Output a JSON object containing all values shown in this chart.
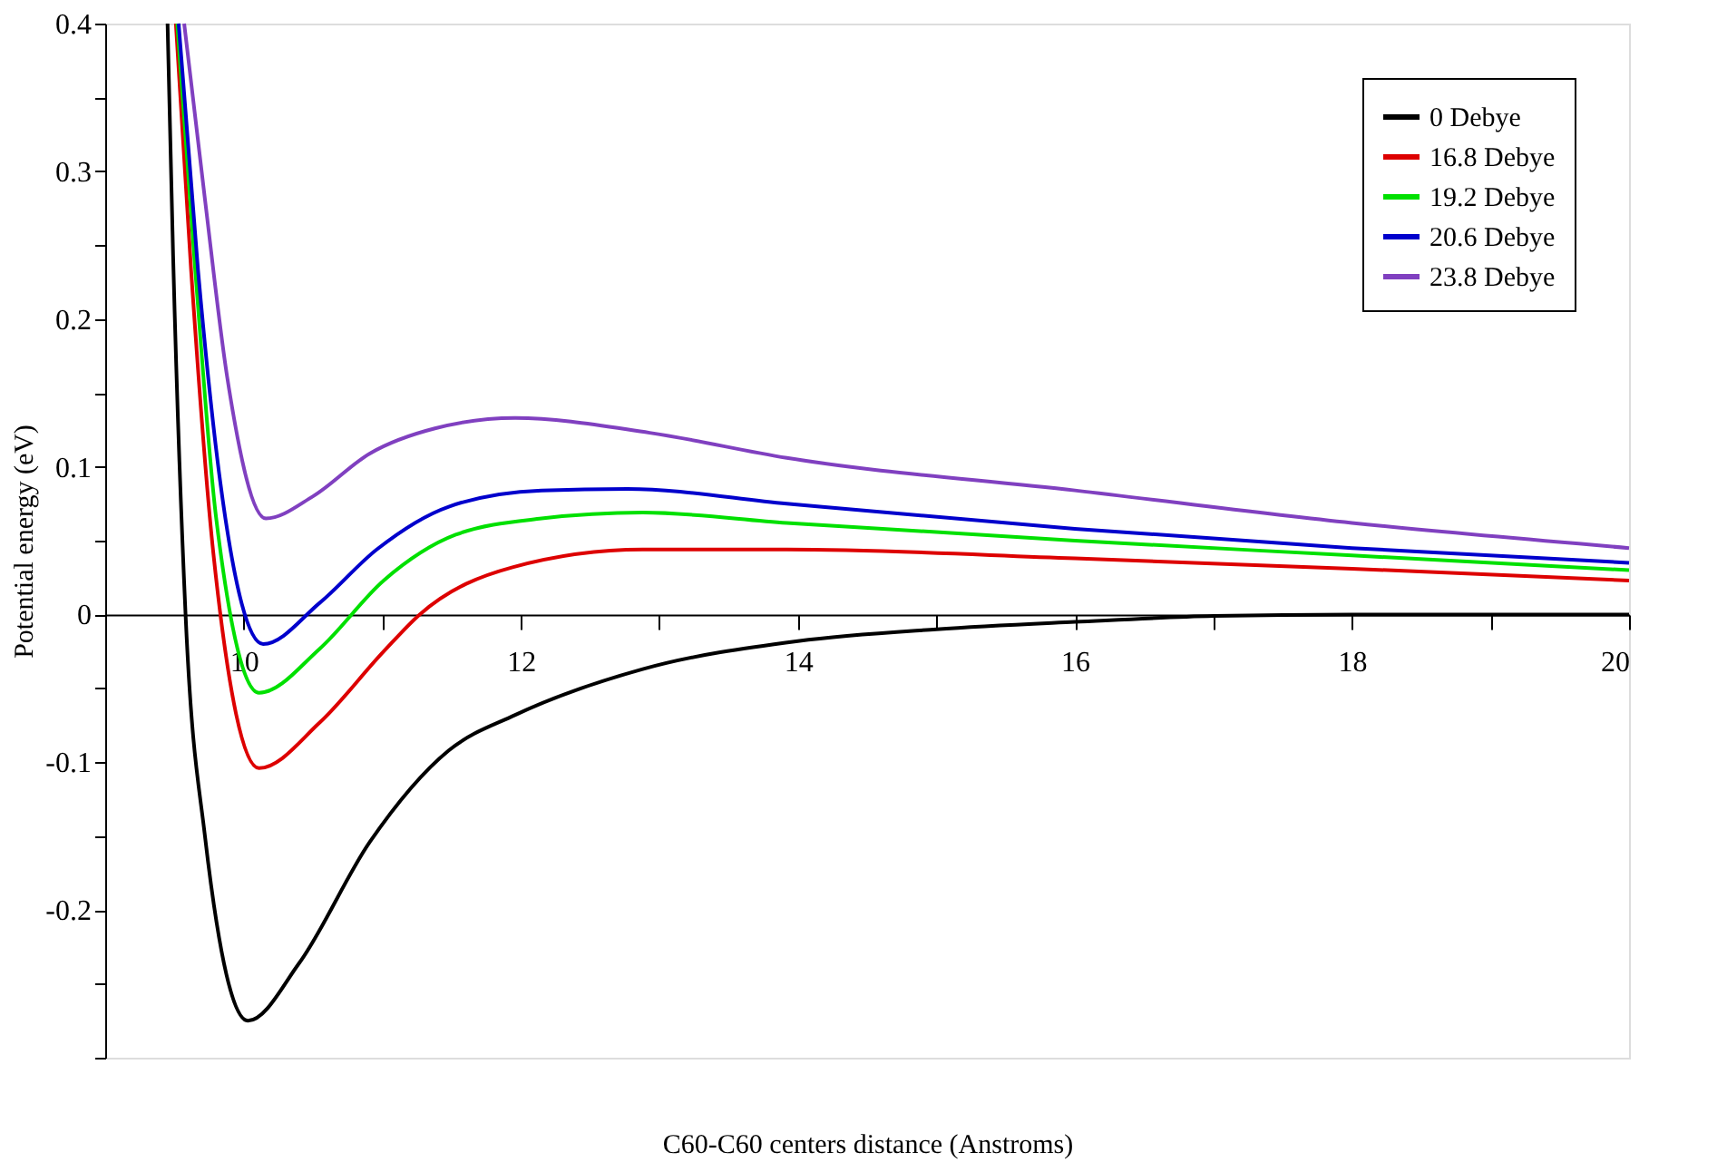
{
  "chart_data": {
    "type": "line",
    "xlabel": "C60-C60 centers distance (Anstroms)",
    "ylabel": "Potential energy (eV)",
    "xlim": [
      9,
      20
    ],
    "ylim": [
      -0.3,
      0.4
    ],
    "xticks": [
      10,
      {
        "value": 11,
        "label": null
      },
      12,
      {
        "value": 13,
        "label": null
      },
      14,
      {
        "value": 15,
        "label": null
      },
      16,
      {
        "value": 17,
        "label": null
      },
      18,
      {
        "value": 19,
        "label": null
      },
      20
    ],
    "yticks": [
      {
        "value": -0.3,
        "label": null
      },
      {
        "value": -0.25,
        "label": null
      },
      -0.2,
      {
        "value": -0.15,
        "label": null
      },
      -0.1,
      {
        "value": -0.05,
        "label": null
      },
      0,
      {
        "value": 0.05,
        "label": null
      },
      0.1,
      {
        "value": 0.15,
        "label": null
      },
      0.2,
      {
        "value": 0.25,
        "label": null
      },
      0.3,
      {
        "value": 0.35,
        "label": null
      },
      0.4
    ],
    "grid": false,
    "legend": "top right",
    "marker": "none",
    "line_style": "solid",
    "series": [
      {
        "name": "0 Debye",
        "color": "#000000",
        "x": [
          9.45,
          9.49,
          9.58,
          9.72,
          10.03,
          10.4,
          10.91,
          11.48,
          11.96,
          12.88,
          14.0,
          15.0,
          16.0,
          17.0,
          18.0,
          19.0,
          20.0
        ],
        "values": [
          0.4,
          0.243,
          0.0,
          -0.15,
          -0.275,
          -0.236,
          -0.154,
          -0.092,
          -0.068,
          -0.037,
          -0.018,
          -0.01,
          -0.005,
          -0.001,
          0.0,
          0.0,
          0.0
        ]
      },
      {
        "name": "16.8 Debye",
        "color": "#dd0000",
        "x": [
          9.51,
          9.62,
          9.78,
          10.11,
          10.55,
          11.01,
          11.27,
          11.94,
          12.88,
          13.92,
          16.0,
          18.0,
          20.0
        ],
        "values": [
          0.4,
          0.233,
          0.042,
          -0.104,
          -0.073,
          -0.025,
          0.0,
          0.032,
          0.044,
          0.044,
          0.038,
          0.031,
          0.023
        ]
      },
      {
        "name": "19.2 Debye",
        "color": "#00e000",
        "x": [
          9.52,
          9.65,
          9.8,
          10.11,
          10.55,
          11.01,
          11.53,
          12.15,
          12.88,
          13.92,
          16.0,
          18.0,
          20.0
        ],
        "values": [
          0.4,
          0.233,
          0.066,
          -0.053,
          -0.023,
          0.023,
          0.054,
          0.065,
          0.069,
          0.062,
          0.05,
          0.04,
          0.03
        ]
      },
      {
        "name": "20.6 Debye",
        "color": "#0000cc",
        "x": [
          9.53,
          9.67,
          9.83,
          10.14,
          10.55,
          10.96,
          11.48,
          12.15,
          12.77,
          13.92,
          16.0,
          18.0,
          20.0
        ],
        "values": [
          0.4,
          0.233,
          0.09,
          -0.02,
          0.008,
          0.044,
          0.073,
          0.084,
          0.085,
          0.075,
          0.058,
          0.045,
          0.035
        ]
      },
      {
        "name": "23.8 Debye",
        "color": "#8040c0",
        "x": [
          9.57,
          9.72,
          9.88,
          10.16,
          10.5,
          10.91,
          11.38,
          11.96,
          12.93,
          13.92,
          16.0,
          18.0,
          20.0
        ],
        "values": [
          0.4,
          0.281,
          0.161,
          0.065,
          0.08,
          0.109,
          0.126,
          0.133,
          0.123,
          0.106,
          0.084,
          0.062,
          0.045
        ]
      }
    ]
  }
}
